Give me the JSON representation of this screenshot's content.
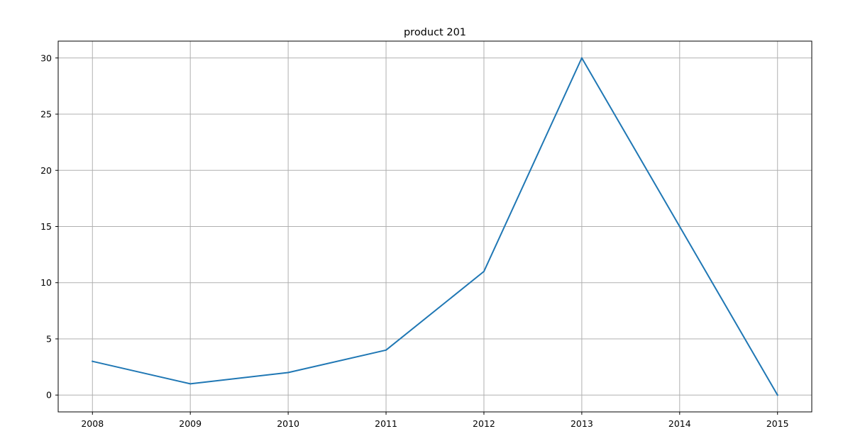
{
  "chart_data": {
    "type": "line",
    "title": "product 201",
    "xlabel": "",
    "ylabel": "",
    "x": [
      2008,
      2009,
      2010,
      2011,
      2012,
      2013,
      2014,
      2015
    ],
    "series": [
      {
        "values": [
          3,
          1,
          2,
          4,
          11,
          30,
          15,
          0
        ],
        "color": "#1f77b4"
      }
    ],
    "xlim": [
      2007.65,
      2015.35
    ],
    "ylim": [
      -1.5,
      31.5
    ],
    "xticks": [
      "2008",
      "2009",
      "2010",
      "2011",
      "2012",
      "2013",
      "2014",
      "2015"
    ],
    "yticks": [
      "0",
      "5",
      "10",
      "15",
      "20",
      "25",
      "30"
    ],
    "ytick_values": [
      0,
      5,
      10,
      15,
      20,
      25,
      30
    ],
    "grid": true,
    "legend": "none"
  }
}
